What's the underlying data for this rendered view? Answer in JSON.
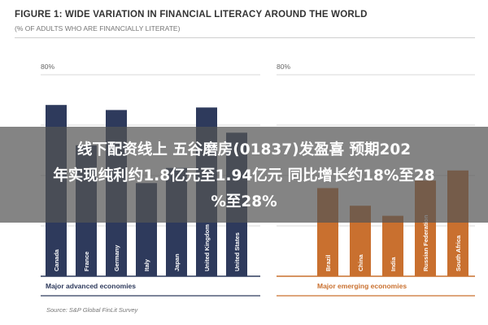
{
  "figure": {
    "title": "FIGURE 1: WIDE VARIATION IN FINANCIAL LITERACY AROUND THE WORLD",
    "subtitle": "(% OF ADULTS WHO ARE FINANCIALLY LITERATE)",
    "source": "Source: S&P Global FinLit Survey"
  },
  "overlay": {
    "line1": "线下配资线上 五谷磨房(01837)发盈喜 预期202",
    "line2": "年实现纯利约1.8亿元至1.94亿元 同比增长约18%至28",
    "line3": "%至28%"
  },
  "colors": {
    "advanced": "#2e3a5c",
    "emerging": "#c9702f",
    "grid": "#d9d9d9"
  },
  "chart_data": [
    {
      "type": "bar",
      "group_label": "Major advanced economies",
      "categories": [
        "Canada",
        "France",
        "Germany",
        "Italy",
        "Japan",
        "United Kingdom",
        "United States"
      ],
      "values": [
        68,
        52,
        66,
        37,
        43,
        67,
        57
      ],
      "ylim": [
        0,
        80
      ],
      "yticks": [
        "80%"
      ],
      "grid": true
    },
    {
      "type": "bar",
      "group_label": "Major emerging economies",
      "categories": [
        "Brazil",
        "China",
        "India",
        "Russian Federation",
        "South Africa"
      ],
      "values": [
        35,
        28,
        24,
        38,
        42
      ],
      "ylim": [
        0,
        80
      ],
      "yticks": [
        "80%"
      ],
      "grid": true
    }
  ]
}
